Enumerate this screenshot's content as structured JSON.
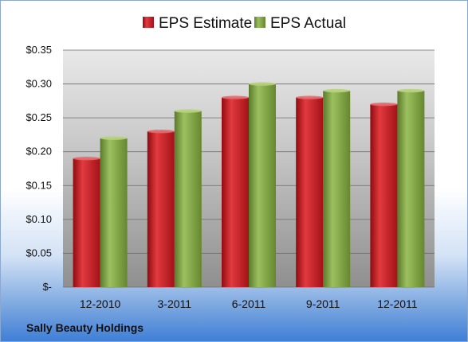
{
  "chart_data": {
    "type": "bar",
    "categories": [
      "12-2010",
      "3-2011",
      "6-2011",
      "9-2011",
      "12-2011"
    ],
    "series": [
      {
        "name": "EPS Estimate",
        "values": [
          0.19,
          0.23,
          0.28,
          0.28,
          0.27
        ],
        "color": "#c8161d"
      },
      {
        "name": "EPS Actual",
        "values": [
          0.22,
          0.26,
          0.3,
          0.29,
          0.29
        ],
        "color": "#7fa34a"
      }
    ],
    "ylim": [
      0,
      0.35
    ],
    "yticks": [
      0,
      0.05,
      0.1,
      0.15,
      0.2,
      0.25,
      0.3,
      0.35
    ],
    "ytick_labels": [
      "$-",
      "$0.05",
      "$0.10",
      "$0.15",
      "$0.20",
      "$0.25",
      "$0.30",
      "$0.35"
    ],
    "grid": true,
    "legend_position": "top-center",
    "source_label": "Sally Beauty Holdings"
  }
}
